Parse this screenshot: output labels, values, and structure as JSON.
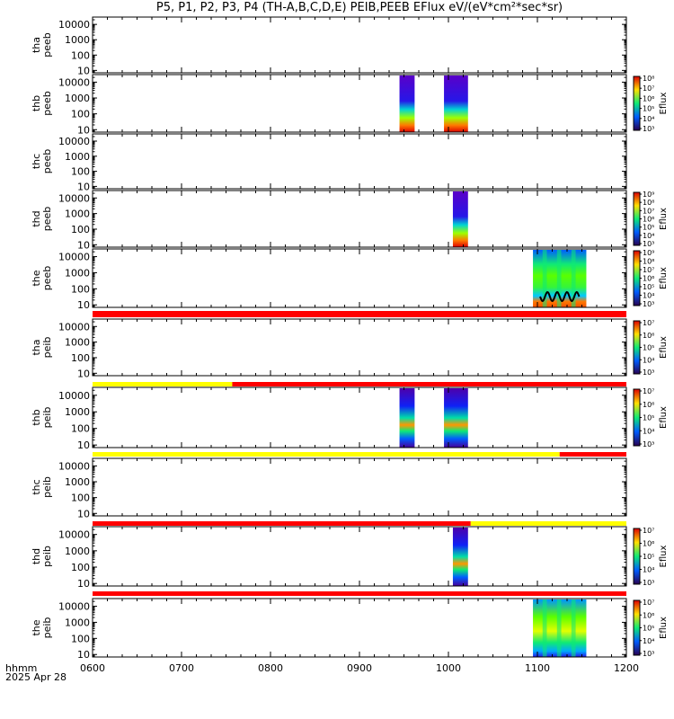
{
  "chart_data": {
    "type": "heatmap",
    "title": "P5, P1, P2, P3, P4 (TH-A,B,C,D,E) PEIB,PEEB EFlux eV/(eV*cm²*sec*sr)",
    "x_ticks": [
      "0600",
      "0700",
      "0800",
      "0900",
      "1000",
      "1100",
      "1200"
    ],
    "x_range_hours": [
      6,
      12
    ],
    "x_label_left": "hhmm",
    "date_label": "2025 Apr 28",
    "y_scale": "log",
    "y_range_eV": [
      7,
      30000
    ],
    "y_ticks": [
      "10",
      "100",
      "1000",
      "10000"
    ],
    "colorbar_label": "Eflux",
    "panels": [
      {
        "label": [
          "tha",
          "peeb"
        ],
        "colorbar": null,
        "blocks": []
      },
      {
        "label": [
          "thb",
          "peeb"
        ],
        "colorbar": {
          "ticks": [
            "10³",
            "10⁴",
            "10⁵",
            "10⁶",
            "10⁷",
            "10⁸"
          ],
          "range_exp": [
            3,
            8
          ]
        },
        "blocks": [
          {
            "start": 9.45,
            "end": 9.62,
            "style": "electron"
          },
          {
            "start": 9.95,
            "end": 10.22,
            "style": "electron"
          }
        ]
      },
      {
        "label": [
          "thc",
          "peeb"
        ],
        "colorbar": null,
        "blocks": []
      },
      {
        "label": [
          "thd",
          "peeb"
        ],
        "colorbar": {
          "ticks": [
            "10³",
            "10⁴",
            "10⁵",
            "10⁶",
            "10⁷",
            "10⁸",
            "10⁹"
          ],
          "range_exp": [
            3,
            9
          ]
        },
        "blocks": [
          {
            "start": 10.05,
            "end": 10.22,
            "style": "electron"
          }
        ]
      },
      {
        "label": [
          "the",
          "peeb"
        ],
        "colorbar": {
          "ticks": [
            "10³",
            "10⁴",
            "10⁵",
            "10⁶",
            "10⁷",
            "10⁸",
            "10⁹"
          ],
          "range_exp": [
            3,
            9
          ]
        },
        "blocks": [
          {
            "start": 10.95,
            "end": 11.55,
            "style": "electron_the"
          }
        ],
        "has_line": true
      },
      {
        "label": [
          "tha",
          "peib"
        ],
        "colorbar": {
          "ticks": [
            "10³",
            "10⁴",
            "10⁵",
            "10⁶",
            "10⁷"
          ],
          "range_exp": [
            3,
            7
          ]
        },
        "blocks": [],
        "bar_above": [
          {
            "start": 6.0,
            "end": 12.0,
            "color": "#ff0000"
          }
        ]
      },
      {
        "label": [
          "thb",
          "peib"
        ],
        "colorbar": {
          "ticks": [
            "10³",
            "10⁴",
            "10⁵",
            "10⁶",
            "10⁷"
          ],
          "range_exp": [
            3,
            7
          ]
        },
        "blocks": [
          {
            "start": 9.45,
            "end": 9.62,
            "style": "ion"
          },
          {
            "start": 9.95,
            "end": 10.22,
            "style": "ion"
          }
        ],
        "bar_above": [
          {
            "start": 6.0,
            "end": 7.57,
            "color": "#ffff00"
          },
          {
            "start": 7.57,
            "end": 12.0,
            "color": "#ff0000"
          }
        ]
      },
      {
        "label": [
          "thc",
          "peib"
        ],
        "colorbar": null,
        "blocks": [],
        "bar_above": [
          {
            "start": 6.0,
            "end": 11.25,
            "color": "#ffff00"
          },
          {
            "start": 11.25,
            "end": 12.0,
            "color": "#ff0000"
          }
        ]
      },
      {
        "label": [
          "thd",
          "peib"
        ],
        "colorbar": {
          "ticks": [
            "10³",
            "10⁴",
            "10⁵",
            "10⁶",
            "10⁷"
          ],
          "range_exp": [
            3,
            7
          ]
        },
        "blocks": [
          {
            "start": 10.05,
            "end": 10.22,
            "style": "ion"
          }
        ],
        "bar_above": [
          {
            "start": 6.0,
            "end": 10.25,
            "color": "#ff0000"
          },
          {
            "start": 10.25,
            "end": 12.0,
            "color": "#ffff00"
          }
        ]
      },
      {
        "label": [
          "the",
          "peib"
        ],
        "colorbar": {
          "ticks": [
            "10³",
            "10⁴",
            "10⁵",
            "10⁶",
            "10⁷"
          ],
          "range_exp": [
            3,
            7
          ]
        },
        "blocks": [
          {
            "start": 10.95,
            "end": 11.55,
            "style": "ion_the"
          }
        ],
        "bar_above": [
          {
            "start": 6.0,
            "end": 12.0,
            "color": "#ff0000"
          }
        ]
      }
    ]
  }
}
